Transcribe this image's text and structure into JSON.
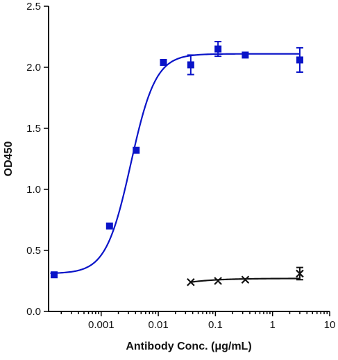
{
  "chart_data": {
    "type": "scatter",
    "xlabel": "Antibody Conc. (μg/mL)",
    "ylabel": "OD450",
    "xscale": "log",
    "xlim": [
      0.00012,
      10
    ],
    "ylim": [
      0,
      2.5
    ],
    "x_ticks": [
      {
        "value": 0.001,
        "label": "0.001"
      },
      {
        "value": 0.01,
        "label": "0.01"
      },
      {
        "value": 0.1,
        "label": "0.1"
      },
      {
        "value": 1,
        "label": "1"
      },
      {
        "value": 10,
        "label": "10"
      }
    ],
    "y_ticks": [
      {
        "value": 0,
        "label": "0.0"
      },
      {
        "value": 0.5,
        "label": "0.5"
      },
      {
        "value": 1.0,
        "label": "1.0"
      },
      {
        "value": 1.5,
        "label": "1.5"
      },
      {
        "value": 2.0,
        "label": "2.0"
      },
      {
        "value": 2.5,
        "label": "2.5"
      }
    ],
    "grid": false,
    "legend": "none",
    "series": [
      {
        "color": "#0a14c8",
        "marker": "square",
        "fit": {
          "type": "4PL",
          "bottom": 0.31,
          "top": 2.11,
          "ec50": 0.0033,
          "hill": 2.0
        },
        "points": [
          {
            "x": 0.00015,
            "y": 0.3,
            "err": 0
          },
          {
            "x": 0.0014,
            "y": 0.7,
            "err": 0
          },
          {
            "x": 0.0041,
            "y": 1.32,
            "err": 0
          },
          {
            "x": 0.0123,
            "y": 2.04,
            "err": 0
          },
          {
            "x": 0.037,
            "y": 2.02,
            "err": 0.08
          },
          {
            "x": 0.111,
            "y": 2.15,
            "err": 0.06
          },
          {
            "x": 0.333,
            "y": 2.1,
            "err": 0
          },
          {
            "x": 3.0,
            "y": 2.06,
            "err": 0.1
          }
        ]
      },
      {
        "color": "#111111",
        "marker": "x",
        "points": [
          {
            "x": 0.037,
            "y": 0.24,
            "err": 0
          },
          {
            "x": 0.111,
            "y": 0.25,
            "err": 0
          },
          {
            "x": 0.333,
            "y": 0.26,
            "err": 0
          },
          {
            "x": 3.0,
            "y": 0.31,
            "err": 0.05
          }
        ]
      }
    ]
  }
}
